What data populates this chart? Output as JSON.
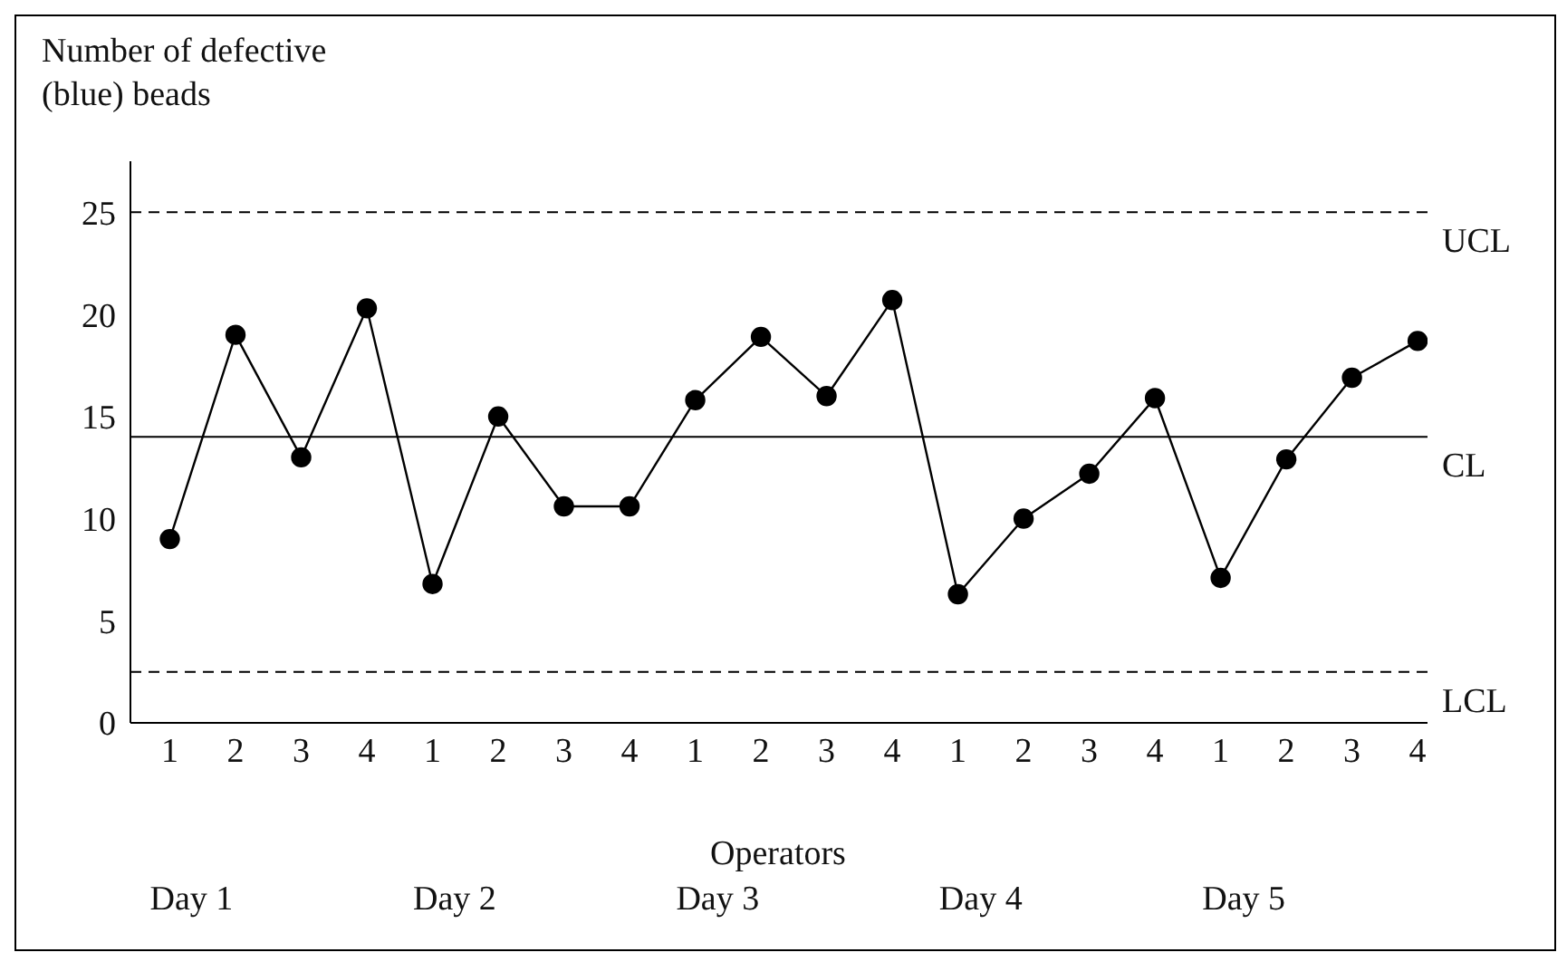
{
  "chart_data": {
    "type": "line",
    "ylabel": "Number of defective (blue) beads",
    "xlabel": "Operators",
    "categories": [
      "1",
      "2",
      "3",
      "4",
      "1",
      "2",
      "3",
      "4",
      "1",
      "2",
      "3",
      "4",
      "1",
      "2",
      "3",
      "4",
      "1",
      "2",
      "3",
      "4"
    ],
    "series": [
      {
        "color": "#000000",
        "values": [
          9,
          19,
          13,
          20.3,
          6.8,
          15,
          10.6,
          10.6,
          15.8,
          18.9,
          16,
          20.7,
          6.3,
          10,
          12.2,
          15.9,
          7.1,
          12.9,
          16.9,
          18.7
        ]
      }
    ],
    "ylim": [
      0,
      27.5
    ],
    "yticks": [
      0,
      5,
      10,
      15,
      20,
      25
    ],
    "marker": "circle",
    "line_style": "solid",
    "ref_lines": [
      {
        "axis": "y",
        "value": 25,
        "label": "UCL",
        "line_style": "dashed",
        "color": "#000000"
      },
      {
        "axis": "y",
        "value": 14,
        "label": "CL",
        "line_style": "solid",
        "color": "#000000"
      },
      {
        "axis": "y",
        "value": 2.5,
        "label": "LCL",
        "line_style": "dashed",
        "color": "#000000"
      }
    ],
    "annotations": [
      "Day 1",
      "Day 2",
      "Day 3",
      "Day 4",
      "Day 5"
    ]
  }
}
